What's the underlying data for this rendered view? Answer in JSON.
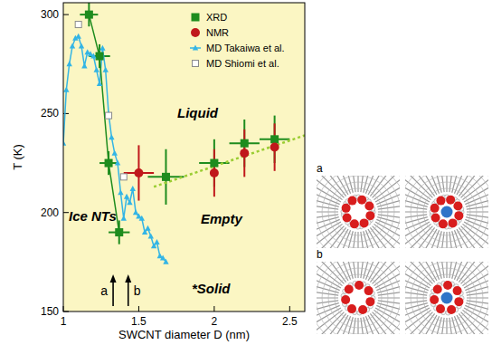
{
  "chart_data": {
    "type": "scatter",
    "x_label": "SWCNT diameter D (nm)",
    "y_label": "T (K)",
    "xlim": [
      1,
      2.6
    ],
    "ylim": [
      150,
      306
    ],
    "xticks": [
      1,
      1.5,
      2,
      2.5
    ],
    "yticks": [
      150,
      200,
      250,
      300
    ],
    "grid": false,
    "legend": "top-right",
    "series": [
      {
        "name": "XRD",
        "type": "scatter",
        "color": "#1e8c1e",
        "marker": "square",
        "x": [
          1.17,
          1.24,
          1.3,
          1.37,
          1.68,
          2.0,
          2.2,
          2.4
        ],
        "values": [
          300,
          279,
          225,
          190,
          218,
          225,
          235,
          237
        ],
        "x_error": [
          0.06,
          0.07,
          0.06,
          0.07,
          0.12,
          0.1,
          0.1,
          0.1
        ],
        "y_error": [
          6,
          6,
          6,
          6,
          14,
          12,
          12,
          12
        ]
      },
      {
        "name": "NMR",
        "type": "scatter",
        "color": "#c0181b",
        "marker": "circle",
        "x": [
          1.5,
          2.0,
          2.2,
          2.4
        ],
        "values": [
          220,
          220,
          230,
          233
        ],
        "x_error": [
          0.1,
          0,
          0,
          0
        ],
        "y_error": [
          14,
          12,
          12,
          12
        ]
      },
      {
        "name": "MD Takaiwa et al.",
        "type": "line",
        "color": "#33b5e5",
        "marker": "triangle",
        "x": [
          1.0,
          1.02,
          1.04,
          1.06,
          1.08,
          1.1,
          1.12,
          1.14,
          1.16,
          1.18,
          1.2,
          1.22,
          1.24,
          1.26,
          1.28,
          1.3,
          1.32,
          1.34,
          1.36,
          1.38,
          1.4,
          1.42,
          1.44,
          1.46,
          1.48,
          1.5,
          1.52,
          1.54,
          1.56,
          1.58,
          1.6,
          1.62,
          1.64,
          1.66,
          1.68
        ],
        "values": [
          235,
          262,
          275,
          284,
          288,
          289,
          284,
          274,
          281,
          280,
          279,
          272,
          265,
          283,
          272,
          250,
          238,
          230,
          225,
          210,
          197,
          208,
          205,
          212,
          200,
          198,
          197,
          190,
          192,
          188,
          183,
          185,
          178,
          177,
          175
        ]
      },
      {
        "name": "MD Shiomi et al.",
        "type": "scatter",
        "color": "#8a8a8a",
        "marker": "square-open",
        "x": [
          1.1,
          1.3,
          1.4
        ],
        "values": [
          295,
          249,
          218
        ]
      },
      {
        "type": "line",
        "color": "#1e8c1e",
        "line_style": "solid",
        "x": [
          1.17,
          1.24,
          1.3,
          1.37
        ],
        "values": [
          300,
          279,
          225,
          190
        ]
      },
      {
        "type": "line",
        "color": "#9acd32",
        "line_style": "dotted",
        "x": [
          1.6,
          2.6
        ],
        "values": [
          213,
          239
        ]
      }
    ],
    "annotations": [
      {
        "text": "Liquid"
      },
      {
        "text": "Ice NTs"
      },
      {
        "text": "Empty"
      },
      {
        "text": "*Solid"
      }
    ],
    "arrows": [
      {
        "text": "a",
        "x": 1.33
      },
      {
        "text": "b",
        "x": 1.43
      }
    ]
  },
  "figure_panels": [
    {
      "label": "a"
    },
    {
      "label": "b"
    }
  ]
}
